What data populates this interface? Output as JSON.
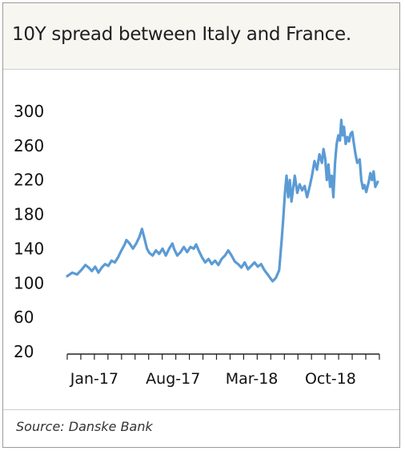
{
  "title": "10Y spread between Italy and France.",
  "source": "Source: Danske Bank",
  "colors": {
    "line": "#5b9bd5",
    "axis": "#222222",
    "text": "#111111",
    "band": "#f7f6f1"
  },
  "chart_data": {
    "type": "line",
    "title": "10Y spread between Italy and France.",
    "xlabel": "",
    "ylabel": "",
    "ylim": [
      20,
      300
    ],
    "yticks": [
      "300",
      "260",
      "220",
      "180",
      "140",
      "100",
      "60",
      "20"
    ],
    "xtick_labels": [
      "Jan-17",
      "Aug-17",
      "Mar-18",
      "Oct-18"
    ],
    "grid": false,
    "legend": "none",
    "series": [
      {
        "values": [
          [
            0,
            108
          ],
          [
            0.3,
            112
          ],
          [
            0.6,
            110
          ],
          [
            0.9,
            116
          ],
          [
            1.1,
            121
          ],
          [
            1.3,
            118
          ],
          [
            1.5,
            114
          ],
          [
            1.7,
            119
          ],
          [
            1.9,
            112
          ],
          [
            2.1,
            118
          ],
          [
            2.3,
            122
          ],
          [
            2.5,
            120
          ],
          [
            2.7,
            126
          ],
          [
            2.9,
            124
          ],
          [
            3.1,
            130
          ],
          [
            3.3,
            138
          ],
          [
            3.5,
            145
          ],
          [
            3.6,
            150
          ],
          [
            3.8,
            146
          ],
          [
            4.0,
            140
          ],
          [
            4.2,
            146
          ],
          [
            4.4,
            154
          ],
          [
            4.55,
            163
          ],
          [
            4.7,
            152
          ],
          [
            4.85,
            140
          ],
          [
            5.0,
            135
          ],
          [
            5.2,
            132
          ],
          [
            5.4,
            138
          ],
          [
            5.6,
            134
          ],
          [
            5.8,
            140
          ],
          [
            6.0,
            132
          ],
          [
            6.2,
            140
          ],
          [
            6.4,
            146
          ],
          [
            6.5,
            140
          ],
          [
            6.7,
            132
          ],
          [
            6.9,
            136
          ],
          [
            7.1,
            142
          ],
          [
            7.3,
            136
          ],
          [
            7.5,
            142
          ],
          [
            7.7,
            140
          ],
          [
            7.85,
            145
          ],
          [
            8.0,
            138
          ],
          [
            8.2,
            130
          ],
          [
            8.4,
            124
          ],
          [
            8.6,
            128
          ],
          [
            8.8,
            122
          ],
          [
            9.0,
            126
          ],
          [
            9.2,
            121
          ],
          [
            9.4,
            128
          ],
          [
            9.6,
            132
          ],
          [
            9.8,
            138
          ],
          [
            10.0,
            132
          ],
          [
            10.2,
            125
          ],
          [
            10.4,
            122
          ],
          [
            10.6,
            118
          ],
          [
            10.8,
            124
          ],
          [
            11.0,
            116
          ],
          [
            11.2,
            120
          ],
          [
            11.4,
            124
          ],
          [
            11.6,
            119
          ],
          [
            11.8,
            122
          ],
          [
            12.0,
            115
          ],
          [
            12.2,
            110
          ],
          [
            12.35,
            106
          ],
          [
            12.5,
            102
          ],
          [
            12.7,
            106
          ],
          [
            12.9,
            115
          ],
          [
            13.05,
            150
          ],
          [
            13.15,
            175
          ],
          [
            13.25,
            205
          ],
          [
            13.35,
            225
          ],
          [
            13.45,
            200
          ],
          [
            13.55,
            220
          ],
          [
            13.65,
            195
          ],
          [
            13.75,
            210
          ],
          [
            13.85,
            225
          ],
          [
            14.0,
            205
          ],
          [
            14.15,
            215
          ],
          [
            14.3,
            208
          ],
          [
            14.45,
            213
          ],
          [
            14.6,
            200
          ],
          [
            14.75,
            212
          ],
          [
            14.9,
            225
          ],
          [
            15.05,
            242
          ],
          [
            15.2,
            232
          ],
          [
            15.35,
            250
          ],
          [
            15.5,
            240
          ],
          [
            15.6,
            256
          ],
          [
            15.7,
            245
          ],
          [
            15.8,
            220
          ],
          [
            15.9,
            238
          ],
          [
            16.0,
            212
          ],
          [
            16.1,
            225
          ],
          [
            16.2,
            200
          ],
          [
            16.3,
            240
          ],
          [
            16.4,
            262
          ],
          [
            16.5,
            272
          ],
          [
            16.6,
            266
          ],
          [
            16.68,
            290
          ],
          [
            16.76,
            272
          ],
          [
            16.84,
            282
          ],
          [
            16.95,
            262
          ],
          [
            17.05,
            270
          ],
          [
            17.15,
            265
          ],
          [
            17.25,
            274
          ],
          [
            17.35,
            276
          ],
          [
            17.45,
            262
          ],
          [
            17.55,
            250
          ],
          [
            17.65,
            240
          ],
          [
            17.8,
            244
          ],
          [
            17.9,
            220
          ],
          [
            18.0,
            210
          ],
          [
            18.1,
            214
          ],
          [
            18.2,
            206
          ],
          [
            18.35,
            218
          ],
          [
            18.45,
            228
          ],
          [
            18.55,
            220
          ],
          [
            18.65,
            230
          ],
          [
            18.75,
            212
          ],
          [
            18.9,
            218
          ]
        ]
      }
    ]
  }
}
